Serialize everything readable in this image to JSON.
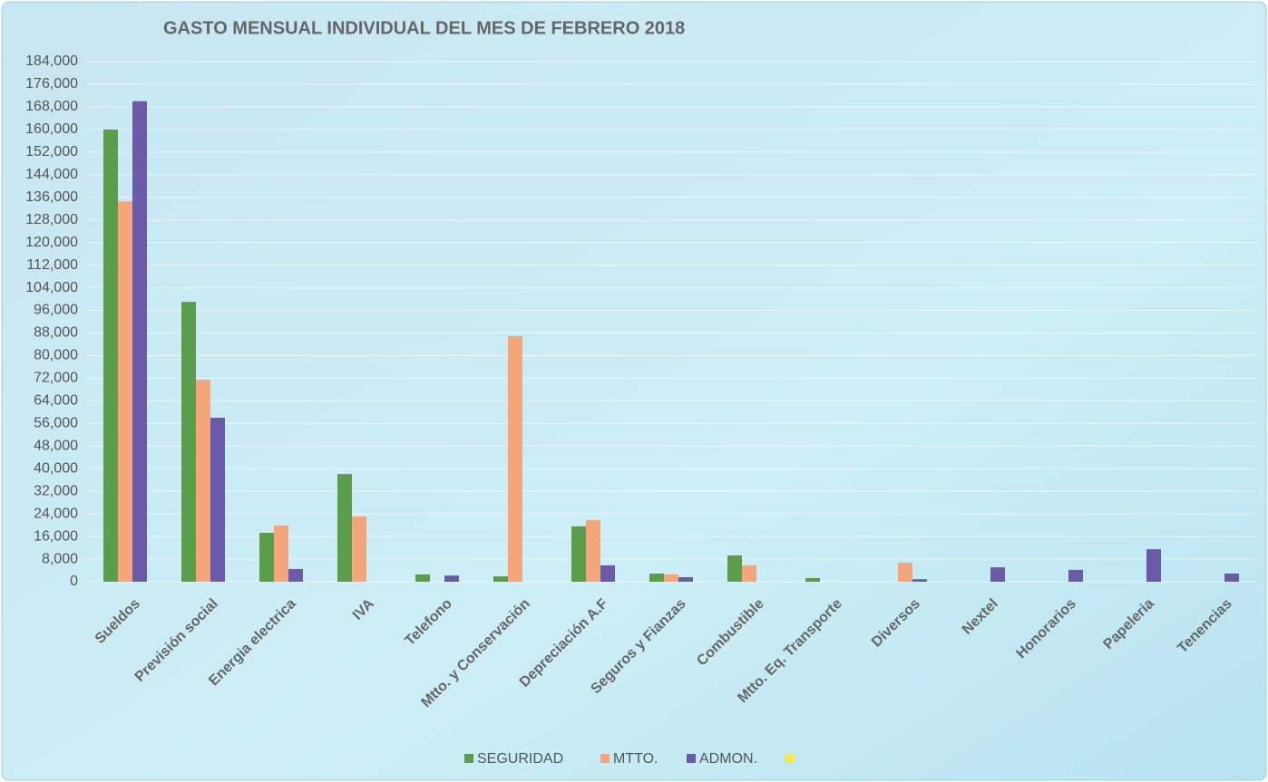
{
  "chart_data": {
    "type": "bar",
    "title": "GASTO MENSUAL INDIVIDUAL DEL MES DE FEBRERO 2018",
    "categories": [
      "Sueldos",
      "Previsión social",
      "Energia electrica",
      "IVA",
      "Telefono",
      "Mtto. y Conservación",
      "Depreciación A.F",
      "Seguros y Fianzas",
      "Combustible",
      "Mtto. Eq. Transporte",
      "Diversos",
      "Nextel",
      "Honorarios",
      "Papeleria",
      "Tenencias"
    ],
    "series": [
      {
        "name": "SEGURIDAD",
        "color": "#5a9e4b",
        "values": [
          160000,
          99000,
          17300,
          38100,
          2600,
          1900,
          19600,
          2900,
          9300,
          1300,
          null,
          null,
          null,
          null,
          null
        ]
      },
      {
        "name": "MTTO.",
        "color": "#f4a57a",
        "values": [
          134500,
          71500,
          19900,
          23100,
          null,
          86900,
          21800,
          2600,
          5800,
          null,
          6700,
          null,
          null,
          null,
          null
        ]
      },
      {
        "name": "ADMON.",
        "color": "#6a5aa8",
        "values": [
          170000,
          58000,
          4500,
          null,
          2200,
          null,
          5800,
          1600,
          null,
          null,
          900,
          5100,
          4200,
          11500,
          2900
        ]
      }
    ],
    "ylim": [
      0,
      184000
    ],
    "yticks": [
      0,
      {
        "value": 8000,
        "label": "8,000"
      },
      {
        "value": 16000,
        "label": "16,000"
      },
      {
        "value": 24000,
        "label": "24,000"
      },
      {
        "value": 32000,
        "label": "32,000"
      },
      {
        "value": 40000,
        "label": "40,000"
      },
      {
        "value": 48000,
        "label": "48,000"
      },
      {
        "value": 56000,
        "label": "56,000"
      },
      {
        "value": 64000,
        "label": "64,000"
      },
      {
        "value": 72000,
        "label": "72,000"
      },
      {
        "value": 80000,
        "label": "80,000"
      },
      {
        "value": 88000,
        "label": "88,000"
      },
      {
        "value": 96000,
        "label": "96,000"
      },
      {
        "value": 104000,
        "label": "104,000"
      },
      {
        "value": 112000,
        "label": "112,000"
      },
      {
        "value": 120000,
        "label": "120,000"
      },
      {
        "value": 128000,
        "label": "128,000"
      },
      {
        "value": 136000,
        "label": "136,000"
      },
      {
        "value": 144000,
        "label": "144,000"
      },
      {
        "value": 152000,
        "label": "152,000"
      },
      {
        "value": 160000,
        "label": "160,000"
      },
      {
        "value": 168000,
        "label": "168,000"
      },
      {
        "value": 176000,
        "label": "176,000"
      },
      {
        "value": 184000,
        "label": "184,000"
      }
    ],
    "grid": true,
    "legend": "bottom"
  }
}
